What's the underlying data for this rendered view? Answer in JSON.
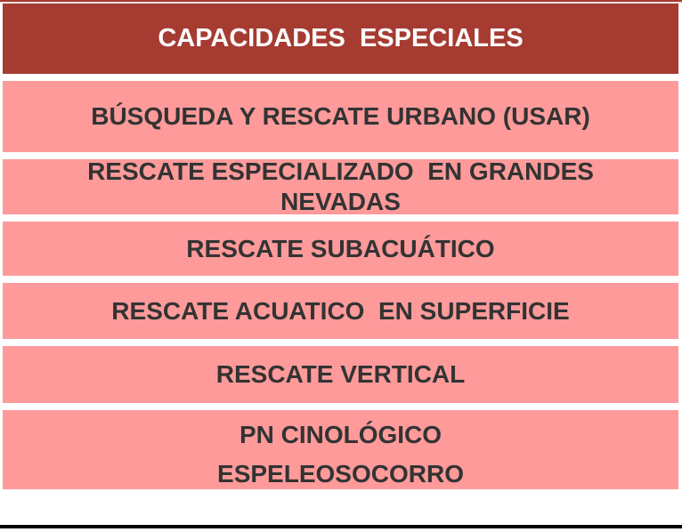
{
  "colors": {
    "header_bg": "#a53b31",
    "header_text": "#ffffff",
    "row_bg": "#fe9a9a",
    "row_text": "#333333",
    "separator": "#ffffff",
    "top_highlight": "#f2e4e4",
    "bottom_bar": "#000000"
  },
  "table": {
    "title": "CAPACIDADES  ESPECIALES",
    "rows": [
      {
        "label": "BÚSQUEDA Y RESCATE URBANO (USAR)"
      },
      {
        "label": "RESCATE ESPECIALIZADO  EN GRANDES\nNEVADAS"
      },
      {
        "label": "RESCATE SUBACUÁTICO"
      },
      {
        "label": "RESCATE ACUATICO  EN SUPERFICIE"
      },
      {
        "label": "RESCATE VERTICAL"
      },
      {
        "label": "PN CINOLÓGICO"
      },
      {
        "label": "ESPELEOSOCORRO"
      }
    ]
  }
}
